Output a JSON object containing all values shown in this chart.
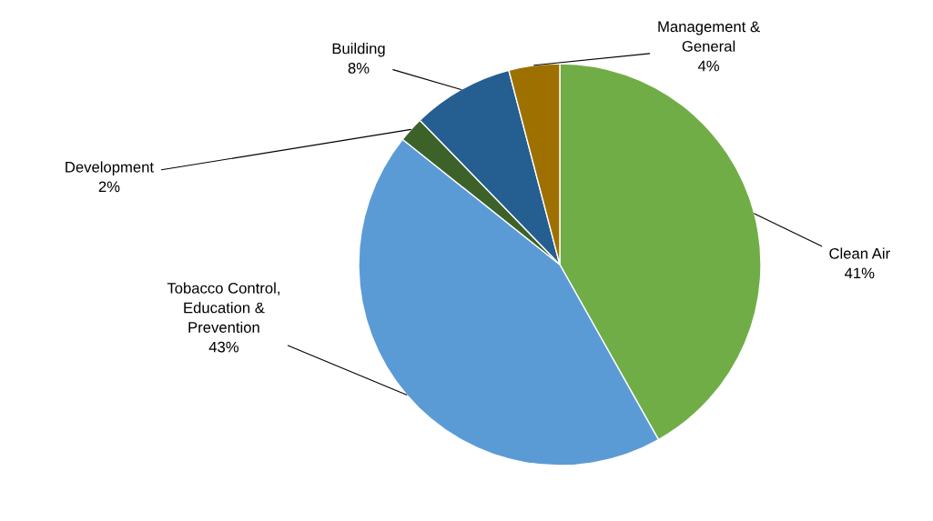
{
  "chart_data": {
    "type": "pie",
    "categories": [
      "Clean Air",
      "Tobacco Control,\nEducation &\nPrevention",
      "Development",
      "Building",
      "Management &\nGeneral"
    ],
    "values": [
      41,
      43,
      2,
      8,
      4
    ],
    "value_labels": [
      "41%",
      "43%",
      "2%",
      "8%",
      "4%"
    ],
    "colors": [
      "#70ad47",
      "#5b9bd5",
      "#3d6229",
      "#255e91",
      "#9e7000"
    ],
    "legend": false
  }
}
